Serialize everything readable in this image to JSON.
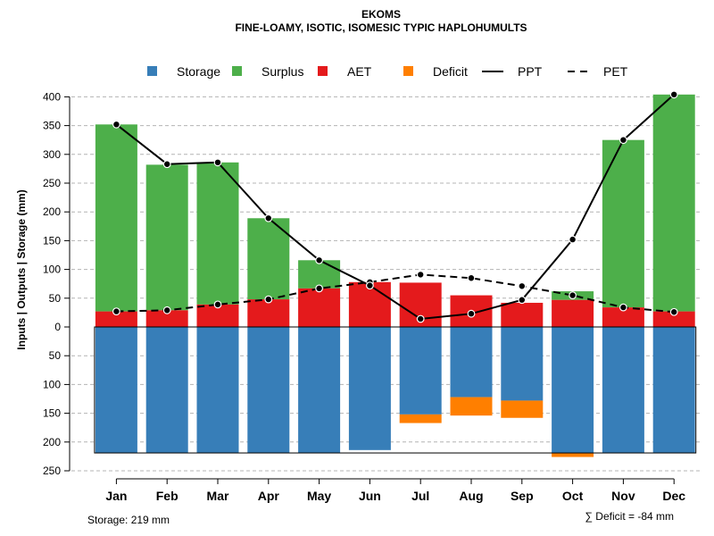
{
  "chart_data": {
    "type": "bar",
    "title": "EKOMS",
    "subtitle": "FINE-LOAMY, ISOTIC, ISOMESIC TYPIC HAPLOHUMULTS",
    "ylabel": "Inputs | Outputs | Storage    (mm)",
    "ylim": [
      -250,
      400
    ],
    "yticks": [
      {
        "value": 400,
        "label": "400"
      },
      {
        "value": 350,
        "label": "350"
      },
      {
        "value": 300,
        "label": "300"
      },
      {
        "value": 250,
        "label": "250"
      },
      {
        "value": 200,
        "label": "200"
      },
      {
        "value": 150,
        "label": "150"
      },
      {
        "value": 100,
        "label": "100"
      },
      {
        "value": 50,
        "label": "50"
      },
      {
        "value": 0,
        "label": "0"
      },
      {
        "value": -50,
        "label": "50"
      },
      {
        "value": -100,
        "label": "100"
      },
      {
        "value": -150,
        "label": "150"
      },
      {
        "value": -200,
        "label": "200"
      },
      {
        "value": -250,
        "label": "250"
      }
    ],
    "grid": true,
    "legend_position": "top",
    "categories": [
      "Jan",
      "Feb",
      "Mar",
      "Apr",
      "May",
      "Jun",
      "Jul",
      "Aug",
      "Sep",
      "Oct",
      "Nov",
      "Dec"
    ],
    "legend": [
      {
        "name": "Storage",
        "kind": "box",
        "color": "#377EB8"
      },
      {
        "name": "Surplus",
        "kind": "box",
        "color": "#4DAF4A"
      },
      {
        "name": "AET",
        "kind": "box",
        "color": "#E41A1C"
      },
      {
        "name": "Deficit",
        "kind": "box",
        "color": "#FF7F00"
      },
      {
        "name": "PPT",
        "kind": "solid",
        "color": "#000000"
      },
      {
        "name": "PET",
        "kind": "dashed",
        "color": "#000000"
      }
    ],
    "series": [
      {
        "name": "AET",
        "color": "#E41A1C",
        "values": [
          27,
          29,
          39,
          48,
          67,
          78,
          77,
          55,
          42,
          47,
          34,
          27
        ]
      },
      {
        "name": "Surplus",
        "color": "#4DAF4A",
        "values": [
          325,
          253,
          247,
          141,
          49,
          0,
          0,
          0,
          0,
          15,
          291,
          377
        ]
      },
      {
        "name": "Storage",
        "color": "#377EB8",
        "values": [
          219,
          219,
          219,
          219,
          219,
          214,
          152,
          122,
          128,
          219,
          219,
          219
        ]
      },
      {
        "name": "Deficit",
        "color": "#FF7F00",
        "values": [
          0,
          0,
          0,
          0,
          0,
          0,
          -15,
          -32,
          -30,
          -7,
          0,
          0
        ]
      },
      {
        "name": "PPT",
        "color": "#000000",
        "values": [
          352,
          283,
          286,
          189,
          116,
          72,
          14,
          23,
          47,
          152,
          325,
          404
        ]
      },
      {
        "name": "PET",
        "color": "#000000",
        "values": [
          27,
          29,
          39,
          48,
          67,
          78,
          91,
          85,
          71,
          55,
          34,
          26
        ]
      }
    ],
    "storage_capacity": 219,
    "annotations": {
      "storage": "Storage: 219 mm",
      "deficit": "∑ Deficit = -84 mm"
    }
  }
}
